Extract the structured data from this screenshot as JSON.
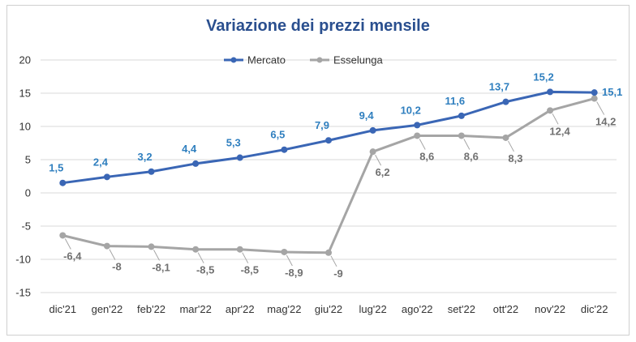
{
  "chart_data": {
    "type": "line",
    "title": "Variazione dei prezzi mensile",
    "xlabel": "",
    "ylabel": "",
    "categories": [
      "dic'21",
      "gen'22",
      "feb'22",
      "mar'22",
      "apr'22",
      "mag'22",
      "giu'22",
      "lug'22",
      "ago'22",
      "set'22",
      "ott'22",
      "nov'22",
      "dic'22"
    ],
    "ylim": [
      -15,
      20
    ],
    "yticks": [
      "20",
      "15",
      "10",
      "5",
      "0",
      "-5",
      "-10",
      "-15"
    ],
    "grid": true,
    "legend": "top-center",
    "series": [
      {
        "name": "Mercato",
        "color": "#3a66b5",
        "label_color": "#2f7fbf",
        "values": [
          1.5,
          2.4,
          3.2,
          4.4,
          5.3,
          6.5,
          7.9,
          9.4,
          10.2,
          11.6,
          13.7,
          15.2,
          15.1
        ],
        "labels": [
          "1,5",
          "2,4",
          "3,2",
          "4,4",
          "5,3",
          "6,5",
          "7,9",
          "9,4",
          "10,2",
          "11,6",
          "13,7",
          "15,2",
          "15,1"
        ]
      },
      {
        "name": "Esselunga",
        "color": "#a5a5a5",
        "label_color": "#707070",
        "values": [
          -6.4,
          -8,
          -8.1,
          -8.5,
          -8.5,
          -8.9,
          -9,
          6.2,
          8.6,
          8.6,
          8.3,
          12.4,
          14.2
        ],
        "labels": [
          "-6,4",
          "-8",
          "-8,1",
          "-8,5",
          "-8,5",
          "-8,9",
          "-9",
          "6,2",
          "8,6",
          "8,6",
          "8,3",
          "12,4",
          "14,2"
        ]
      }
    ]
  }
}
